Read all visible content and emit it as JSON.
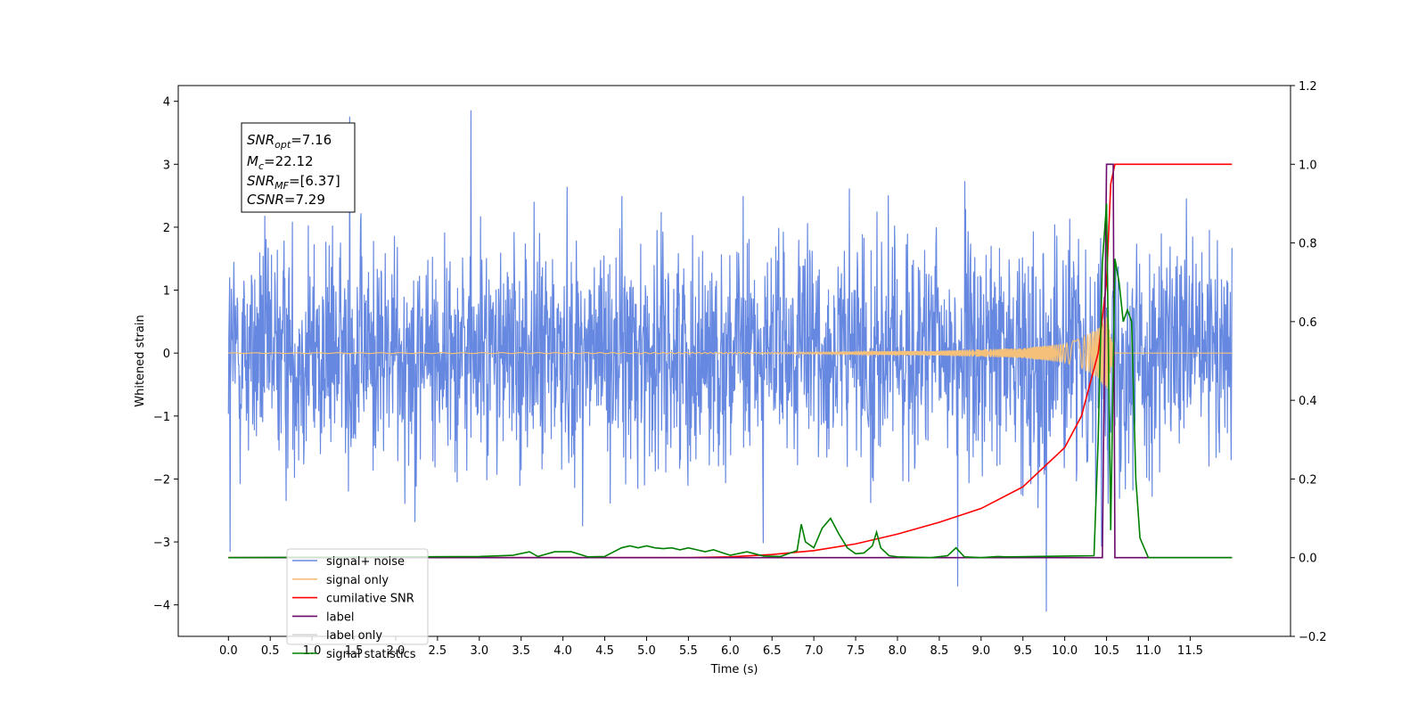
{
  "chart_data": {
    "type": "line",
    "title": "",
    "xlabel": "Time (s)",
    "ylabel": "Whitened strain",
    "y2label": "",
    "xlim": [
      -0.6,
      12.7
    ],
    "ylim": [
      -4.5,
      4.25
    ],
    "y2lim": [
      -0.2,
      1.2
    ],
    "x_ticks": [
      0.0,
      0.5,
      1.0,
      1.5,
      2.0,
      2.5,
      3.0,
      3.5,
      4.0,
      4.5,
      5.0,
      5.5,
      6.0,
      6.5,
      7.0,
      7.5,
      8.0,
      8.5,
      9.0,
      9.5,
      10.0,
      10.5,
      11.0,
      11.5
    ],
    "x_tick_labels": [
      "0.0",
      "0.5",
      "1.0",
      "1.5",
      "2.0",
      "2.5",
      "3.0",
      "3.5",
      "4.0",
      "4.5",
      "5.0",
      "5.5",
      "6.0",
      "6.5",
      "7.0",
      "7.5",
      "8.0",
      "8.5",
      "9.0",
      "9.5",
      "10.0",
      "10.5",
      "11.0",
      "11.5"
    ],
    "y_ticks": [
      -4,
      -3,
      -2,
      -1,
      0,
      1,
      2,
      3,
      4
    ],
    "y_tick_labels": [
      "−4",
      "−3",
      "−2",
      "−1",
      "0",
      "1",
      "2",
      "3",
      "4"
    ],
    "y2_ticks": [
      -0.2,
      0.0,
      0.2,
      0.4,
      0.6,
      0.8,
      1.0,
      1.2
    ],
    "y2_tick_labels": [
      "−0.2",
      "0.0",
      "0.2",
      "0.4",
      "0.6",
      "0.8",
      "1.0",
      "1.2"
    ],
    "grid": false,
    "legend_position": "lower-left",
    "series": [
      {
        "name": "signal+ noise",
        "axis": "left",
        "color": "#6688e0",
        "style": "noise band, roughly ±1.9 with peaks to about +3.85 and −4.1",
        "extremes": [
          [
            2.9,
            3.85
          ],
          [
            1.45,
            3.75
          ],
          [
            9.78,
            -4.1
          ],
          [
            8.72,
            -3.7
          ],
          [
            0.02,
            -3.15
          ]
        ]
      },
      {
        "name": "signal only",
        "axis": "left",
        "color": "#f4c07a",
        "x": [
          0.0,
          6.5,
          7.5,
          8.5,
          9.0,
          9.5,
          10.0,
          10.2,
          10.4,
          10.5,
          10.55,
          10.6,
          12.0
        ],
        "envelope": [
          0.005,
          0.01,
          0.02,
          0.04,
          0.06,
          0.08,
          0.15,
          0.24,
          0.4,
          0.6,
          0.3,
          0.0,
          0.0
        ]
      },
      {
        "name": "cumilative SNR",
        "axis": "right",
        "color": "#ff0000",
        "x": [
          0.0,
          5.5,
          6.0,
          6.5,
          7.0,
          7.5,
          8.0,
          8.5,
          9.0,
          9.5,
          10.0,
          10.2,
          10.4,
          10.5,
          10.55,
          10.6,
          12.0
        ],
        "y": [
          0.0,
          0.0,
          0.002,
          0.008,
          0.018,
          0.035,
          0.06,
          0.09,
          0.125,
          0.18,
          0.28,
          0.36,
          0.52,
          0.7,
          0.95,
          1.0,
          1.0
        ]
      },
      {
        "name": "label",
        "axis": "right",
        "color": "#6a0a6a",
        "x": [
          0.0,
          10.45,
          10.5,
          10.58,
          10.6,
          12.0
        ],
        "y": [
          0.0,
          0.0,
          1.0,
          1.0,
          0.0,
          0.0
        ]
      },
      {
        "name": "label only",
        "axis": "right",
        "color": "#d8d8d8",
        "x": [],
        "y": []
      },
      {
        "name": "signal statistics",
        "axis": "right",
        "color": "#008000",
        "x": [
          0.0,
          3.0,
          3.4,
          3.6,
          3.7,
          3.9,
          4.1,
          4.3,
          4.5,
          4.7,
          4.8,
          4.9,
          5.0,
          5.1,
          5.2,
          5.3,
          5.4,
          5.5,
          5.6,
          5.7,
          5.8,
          5.9,
          6.0,
          6.2,
          6.4,
          6.6,
          6.8,
          6.85,
          6.9,
          7.0,
          7.1,
          7.2,
          7.3,
          7.4,
          7.5,
          7.6,
          7.7,
          7.75,
          7.8,
          7.9,
          8.0,
          8.4,
          8.6,
          8.7,
          8.8,
          9.0,
          9.2,
          9.3,
          10.0,
          10.35,
          10.4,
          10.45,
          10.5,
          10.55,
          10.6,
          10.65,
          10.7,
          10.75,
          10.8,
          10.85,
          10.9,
          11.0,
          12.0
        ],
        "y": [
          0.0,
          0.003,
          0.006,
          0.015,
          0.003,
          0.015,
          0.015,
          0.002,
          0.003,
          0.025,
          0.03,
          0.025,
          0.03,
          0.025,
          0.023,
          0.025,
          0.02,
          0.025,
          0.02,
          0.015,
          0.02,
          0.013,
          0.006,
          0.015,
          0.004,
          0.003,
          0.018,
          0.085,
          0.04,
          0.025,
          0.075,
          0.1,
          0.06,
          0.025,
          0.01,
          0.012,
          0.03,
          0.065,
          0.025,
          0.005,
          0.002,
          0.0,
          0.005,
          0.025,
          0.002,
          0.0,
          0.003,
          0.002,
          0.004,
          0.005,
          0.3,
          0.75,
          0.9,
          0.07,
          0.76,
          0.7,
          0.6,
          0.63,
          0.6,
          0.2,
          0.05,
          0.0,
          0.0
        ]
      }
    ],
    "annotations": [
      {
        "name": "SNR",
        "subscript": "opt",
        "text": "=7.16"
      },
      {
        "name": "M",
        "subscript": "c",
        "text": "=22.12"
      },
      {
        "name": "SNR",
        "subscript": "MF",
        "text": "=[6.37]"
      },
      {
        "name": "CSNR",
        "subscript": "",
        "text": "=7.29"
      }
    ]
  }
}
